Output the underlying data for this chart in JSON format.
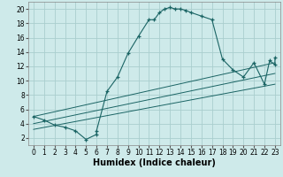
{
  "xlabel": "Humidex (Indice chaleur)",
  "bg_color": "#ceeaea",
  "grid_color": "#aacece",
  "line_color": "#1a6464",
  "xlim": [
    -0.5,
    23.5
  ],
  "ylim": [
    1,
    21
  ],
  "xticks": [
    0,
    1,
    2,
    3,
    4,
    5,
    6,
    7,
    8,
    9,
    10,
    11,
    12,
    13,
    14,
    15,
    16,
    17,
    18,
    19,
    20,
    21,
    22,
    23
  ],
  "yticks": [
    2,
    4,
    6,
    8,
    10,
    12,
    14,
    16,
    18,
    20
  ],
  "series": [
    [
      0,
      5.0
    ],
    [
      1,
      4.5
    ],
    [
      2,
      3.8
    ],
    [
      3,
      3.5
    ],
    [
      4,
      3.0
    ],
    [
      5,
      1.8
    ],
    [
      6,
      2.5
    ],
    [
      6,
      3.0
    ],
    [
      7,
      8.5
    ],
    [
      8,
      10.5
    ],
    [
      9,
      13.8
    ],
    [
      10,
      16.2
    ],
    [
      11,
      18.5
    ],
    [
      11.5,
      18.5
    ],
    [
      12,
      19.5
    ],
    [
      12.5,
      20.0
    ],
    [
      13,
      20.2
    ],
    [
      13.5,
      20.0
    ],
    [
      14,
      20.0
    ],
    [
      14.5,
      19.8
    ],
    [
      15,
      19.5
    ],
    [
      16,
      19.0
    ],
    [
      17,
      18.5
    ],
    [
      18,
      13.0
    ],
    [
      19,
      11.5
    ],
    [
      20,
      10.5
    ],
    [
      21,
      12.5
    ],
    [
      22,
      9.5
    ],
    [
      22.5,
      12.8
    ],
    [
      23,
      12.2
    ],
    [
      23,
      13.2
    ]
  ],
  "linear_lines": [
    {
      "x": [
        0,
        23
      ],
      "y": [
        5.0,
        12.5
      ]
    },
    {
      "x": [
        0,
        23
      ],
      "y": [
        4.0,
        11.0
      ]
    },
    {
      "x": [
        0,
        23
      ],
      "y": [
        3.2,
        9.5
      ]
    }
  ],
  "xlabel_fontsize": 7,
  "tick_fontsize": 5.5
}
